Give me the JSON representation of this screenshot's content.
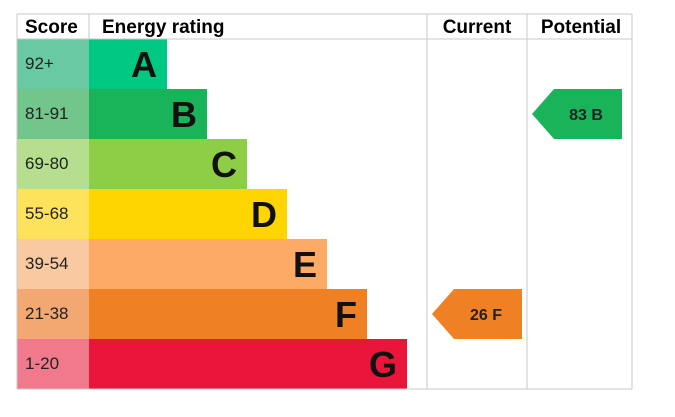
{
  "chart_data": {
    "type": "bar",
    "headers": {
      "score": "Score",
      "rating": "Energy rating",
      "current": "Current",
      "potential": "Potential"
    },
    "bands": [
      {
        "score": "92+",
        "letter": "A",
        "band_color": "#00c781",
        "score_bg": "#68c9a3"
      },
      {
        "score": "81-91",
        "letter": "B",
        "band_color": "#19b459",
        "score_bg": "#72c58b"
      },
      {
        "score": "69-80",
        "letter": "C",
        "band_color": "#8dce46",
        "score_bg": "#b5df8e"
      },
      {
        "score": "55-68",
        "letter": "D",
        "band_color": "#ffd500",
        "score_bg": "#fde25c"
      },
      {
        "score": "39-54",
        "letter": "E",
        "band_color": "#fcaa65",
        "score_bg": "#f9c9a1"
      },
      {
        "score": "21-38",
        "letter": "F",
        "band_color": "#ef8023",
        "score_bg": "#f2a870"
      },
      {
        "score": "1-20",
        "letter": "G",
        "band_color": "#e9153b",
        "score_bg": "#f07a8c"
      }
    ],
    "current": {
      "value": 26,
      "letter": "F",
      "label": "26 F",
      "color": "#ef8023"
    },
    "potential": {
      "value": 83,
      "letter": "B",
      "label": "83 B",
      "color": "#19b459"
    },
    "grid_color": "#c8c8c8"
  }
}
